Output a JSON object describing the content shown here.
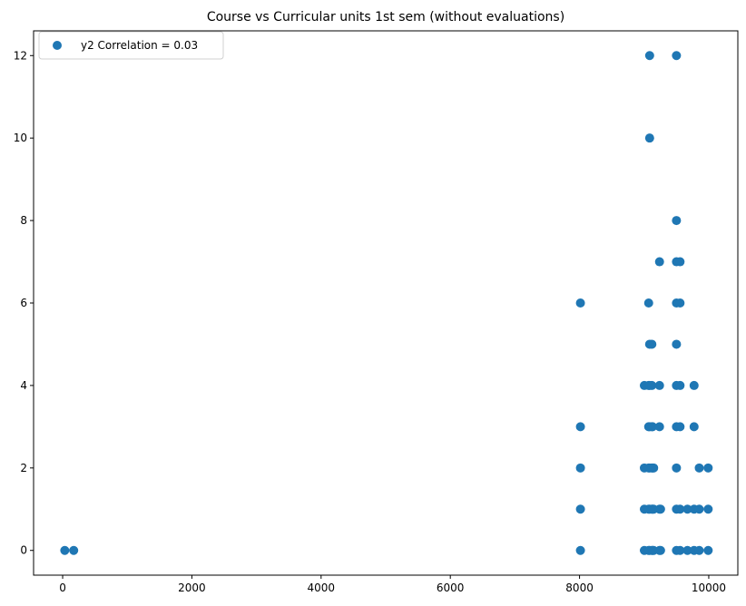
{
  "chart_data": {
    "type": "scatter",
    "title": "Course vs Curricular units 1st sem (without evaluations)",
    "xlabel": "",
    "ylabel": "",
    "xlim": [
      -450,
      10450
    ],
    "ylim": [
      -0.6,
      12.6
    ],
    "xticks": [
      0,
      2000,
      4000,
      6000,
      8000,
      10000
    ],
    "yticks": [
      0,
      2,
      4,
      6,
      8,
      10,
      12
    ],
    "grid": false,
    "legend_position": "top-left",
    "series": [
      {
        "name": "y2 Correlation = 0.03",
        "color": "#1f77b4",
        "points": [
          {
            "x": 33,
            "y": 0
          },
          {
            "x": 171,
            "y": 0
          },
          {
            "x": 8014,
            "y": 0
          },
          {
            "x": 8014,
            "y": 1
          },
          {
            "x": 8014,
            "y": 2
          },
          {
            "x": 8014,
            "y": 3
          },
          {
            "x": 8014,
            "y": 6
          },
          {
            "x": 9003,
            "y": 0
          },
          {
            "x": 9003,
            "y": 1
          },
          {
            "x": 9003,
            "y": 2
          },
          {
            "x": 9003,
            "y": 4
          },
          {
            "x": 9070,
            "y": 0
          },
          {
            "x": 9070,
            "y": 1
          },
          {
            "x": 9070,
            "y": 2
          },
          {
            "x": 9070,
            "y": 3
          },
          {
            "x": 9070,
            "y": 4
          },
          {
            "x": 9070,
            "y": 6
          },
          {
            "x": 9085,
            "y": 0
          },
          {
            "x": 9085,
            "y": 1
          },
          {
            "x": 9085,
            "y": 2
          },
          {
            "x": 9085,
            "y": 3
          },
          {
            "x": 9085,
            "y": 4
          },
          {
            "x": 9085,
            "y": 5
          },
          {
            "x": 9085,
            "y": 10
          },
          {
            "x": 9085,
            "y": 12
          },
          {
            "x": 9119,
            "y": 0
          },
          {
            "x": 9119,
            "y": 1
          },
          {
            "x": 9119,
            "y": 2
          },
          {
            "x": 9119,
            "y": 3
          },
          {
            "x": 9119,
            "y": 4
          },
          {
            "x": 9119,
            "y": 5
          },
          {
            "x": 9130,
            "y": 0
          },
          {
            "x": 9130,
            "y": 1
          },
          {
            "x": 9130,
            "y": 2
          },
          {
            "x": 9130,
            "y": 3
          },
          {
            "x": 9147,
            "y": 0
          },
          {
            "x": 9147,
            "y": 1
          },
          {
            "x": 9147,
            "y": 2
          },
          {
            "x": 9238,
            "y": 0
          },
          {
            "x": 9238,
            "y": 1
          },
          {
            "x": 9238,
            "y": 3
          },
          {
            "x": 9238,
            "y": 4
          },
          {
            "x": 9238,
            "y": 7
          },
          {
            "x": 9254,
            "y": 0
          },
          {
            "x": 9254,
            "y": 1
          },
          {
            "x": 9500,
            "y": 0
          },
          {
            "x": 9500,
            "y": 1
          },
          {
            "x": 9500,
            "y": 2
          },
          {
            "x": 9500,
            "y": 3
          },
          {
            "x": 9500,
            "y": 4
          },
          {
            "x": 9500,
            "y": 5
          },
          {
            "x": 9500,
            "y": 6
          },
          {
            "x": 9500,
            "y": 7
          },
          {
            "x": 9500,
            "y": 8
          },
          {
            "x": 9500,
            "y": 12
          },
          {
            "x": 9556,
            "y": 0
          },
          {
            "x": 9556,
            "y": 1
          },
          {
            "x": 9556,
            "y": 3
          },
          {
            "x": 9556,
            "y": 4
          },
          {
            "x": 9556,
            "y": 6
          },
          {
            "x": 9556,
            "y": 7
          },
          {
            "x": 9670,
            "y": 0
          },
          {
            "x": 9670,
            "y": 1
          },
          {
            "x": 9773,
            "y": 0
          },
          {
            "x": 9773,
            "y": 1
          },
          {
            "x": 9773,
            "y": 3
          },
          {
            "x": 9773,
            "y": 4
          },
          {
            "x": 9853,
            "y": 0
          },
          {
            "x": 9853,
            "y": 1
          },
          {
            "x": 9853,
            "y": 2
          },
          {
            "x": 9991,
            "y": 0
          },
          {
            "x": 9991,
            "y": 1
          },
          {
            "x": 9991,
            "y": 2
          }
        ]
      }
    ]
  }
}
